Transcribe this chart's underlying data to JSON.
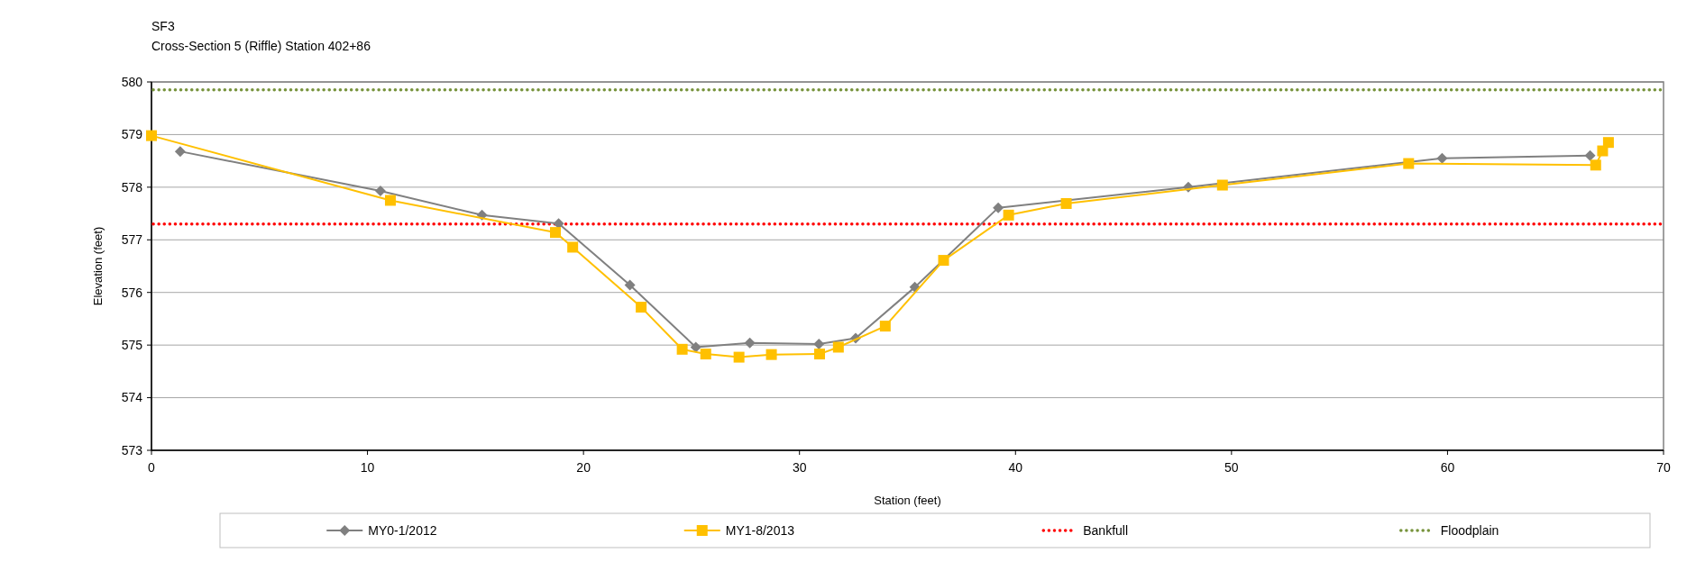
{
  "chart_data": {
    "type": "line",
    "title": "SF3",
    "subtitle": "Cross-Section 5 (Riffle) Station 402+86",
    "xlabel": "Station (feet)",
    "ylabel": "Elevation (feet)",
    "xlim": [
      0,
      70
    ],
    "xticks": [
      0,
      10,
      20,
      30,
      40,
      50,
      60,
      70
    ],
    "ylim": [
      573,
      580
    ],
    "yticks": [
      573,
      574,
      575,
      576,
      577,
      578,
      579,
      580
    ],
    "grid": "y",
    "legend": "bottom",
    "line_style": "solid",
    "series": [
      {
        "name": "MY0-1/2012",
        "color": "#808080",
        "marker": "diamond",
        "x": [
          1.33,
          10.6,
          15.3,
          18.85,
          22.15,
          25.2,
          27.7,
          30.9,
          32.6,
          35.34,
          39.2,
          48.0,
          59.75,
          66.6
        ],
        "values": [
          578.68,
          577.93,
          577.47,
          577.31,
          576.14,
          574.96,
          575.04,
          575.02,
          575.13,
          576.1,
          577.61,
          578.0,
          578.55,
          578.6
        ]
      },
      {
        "name": "MY1-8/2013",
        "color": "#ffc000",
        "marker": "square",
        "x": [
          0,
          11.06,
          18.7,
          19.5,
          22.67,
          24.57,
          25.66,
          27.2,
          28.7,
          30.93,
          31.8,
          33.97,
          36.67,
          39.68,
          42.35,
          49.58,
          58.2,
          66.86,
          67.18,
          67.45
        ],
        "values": [
          578.98,
          577.75,
          577.14,
          576.86,
          575.72,
          574.92,
          574.83,
          574.77,
          574.82,
          574.83,
          574.96,
          575.36,
          576.61,
          577.47,
          577.69,
          578.04,
          578.45,
          578.42,
          578.69,
          578.85
        ]
      }
    ],
    "ref_lines": [
      {
        "axis": "y",
        "value": 577.3,
        "label": "Bankfull",
        "color": "#ff0000",
        "line_style": "dotted"
      },
      {
        "axis": "y",
        "value": 579.85,
        "label": "Floodplain",
        "color": "#77933c",
        "line_style": "dotted"
      }
    ]
  }
}
